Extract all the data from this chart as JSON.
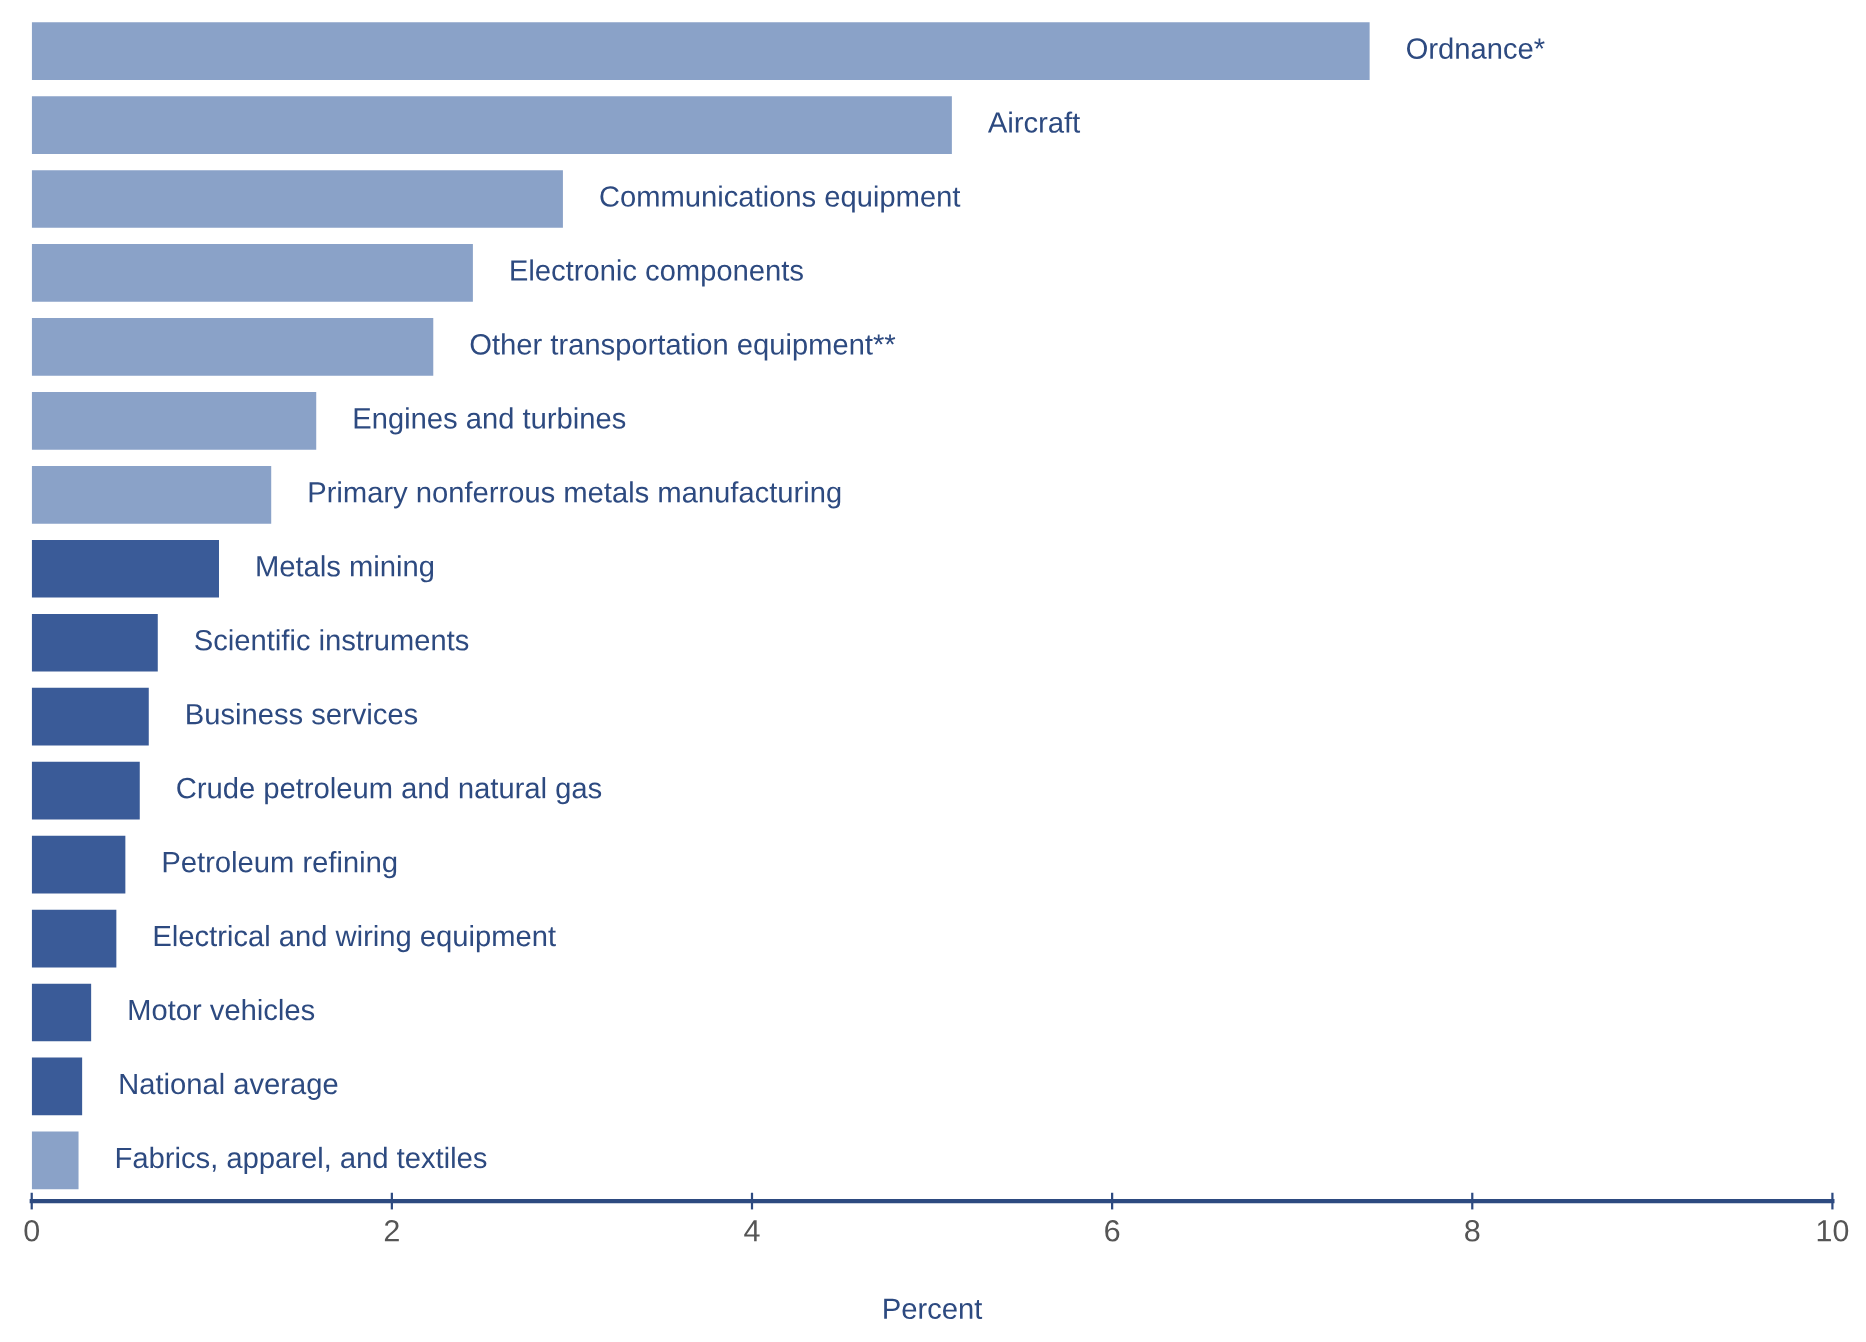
{
  "chart_data": {
    "type": "bar",
    "orientation": "horizontal",
    "xlabel": "Percent",
    "categories": [
      "Ordnance*",
      "Aircraft",
      "Communications equipment",
      "Electronic components",
      "Other transportation equipment**",
      "Engines and turbines",
      "Primary nonferrous metals manufacturing",
      "Metals mining",
      "Scientific instruments",
      "Business services",
      "Crude petroleum and natural gas",
      "Petroleum refining",
      "Electrical and wiring equipment",
      "Motor vehicles",
      "National average",
      "Fabrics, apparel, and textiles"
    ],
    "values": [
      7.43,
      5.11,
      2.95,
      2.45,
      2.23,
      1.58,
      1.33,
      1.04,
      0.7,
      0.65,
      0.6,
      0.52,
      0.47,
      0.33,
      0.28,
      0.26
    ],
    "colors": [
      "#8aa2c8",
      "#8aa2c8",
      "#8aa2c8",
      "#8aa2c8",
      "#8aa2c8",
      "#8aa2c8",
      "#8aa2c8",
      "#3a5b98",
      "#3a5b98",
      "#3a5b98",
      "#3a5b98",
      "#3a5b98",
      "#3a5b98",
      "#3a5b98",
      "#3a5b98",
      "#8aa2c8"
    ],
    "xlim": [
      0,
      10
    ],
    "xticks": [
      0,
      2,
      4,
      6,
      8,
      10
    ],
    "grid": false,
    "legend": false
  }
}
